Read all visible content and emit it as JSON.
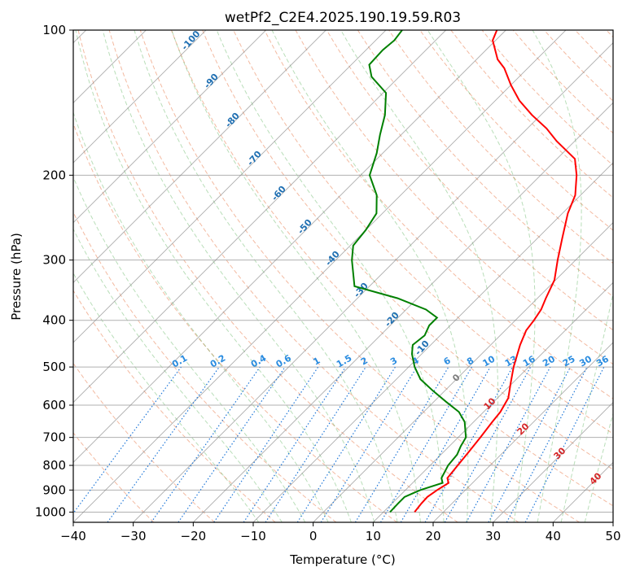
{
  "chart_data": {
    "type": "line",
    "title": "wetPf2_C2E4.2025.190.19.59.R03",
    "xlabel": "Temperature (°C)",
    "ylabel": "Pressure (hPa)",
    "xlim": [
      -40,
      50
    ],
    "ylim": [
      1050,
      100
    ],
    "yscale": "log",
    "x_ticks": [
      -40,
      -30,
      -20,
      -10,
      0,
      10,
      20,
      30,
      40,
      50
    ],
    "y_ticks": [
      100,
      200,
      300,
      400,
      500,
      600,
      700,
      800,
      900,
      1000
    ],
    "grid": true,
    "skew_t": true,
    "series": [
      {
        "role": "temperature",
        "color": "#ff0000",
        "points": [
          [
            1000,
            15.2
          ],
          [
            960,
            14.9
          ],
          [
            930,
            14.8
          ],
          [
            900,
            15.3
          ],
          [
            870,
            16.0
          ],
          [
            850,
            15.0
          ],
          [
            800,
            14.6
          ],
          [
            750,
            14.2
          ],
          [
            700,
            13.7
          ],
          [
            650,
            13.1
          ],
          [
            620,
            12.8
          ],
          [
            580,
            11.8
          ],
          [
            540,
            9.7
          ],
          [
            500,
            7.5
          ],
          [
            450,
            4.9
          ],
          [
            420,
            3.5
          ],
          [
            400,
            3.1
          ],
          [
            380,
            2.5
          ],
          [
            360,
            1.4
          ],
          [
            330,
            -0.2
          ],
          [
            300,
            -3.0
          ],
          [
            270,
            -5.9
          ],
          [
            240,
            -9.1
          ],
          [
            220,
            -10.9
          ],
          [
            200,
            -14.0
          ],
          [
            185,
            -17.0
          ],
          [
            170,
            -23.0
          ],
          [
            160,
            -26.8
          ],
          [
            150,
            -31.5
          ],
          [
            140,
            -36.0
          ],
          [
            130,
            -40.0
          ],
          [
            120,
            -43.9
          ],
          [
            115,
            -46.5
          ],
          [
            105,
            -50.5
          ],
          [
            100,
            -51.5
          ]
        ]
      },
      {
        "role": "dewpoint",
        "color": "#008000",
        "points": [
          [
            1000,
            11.1
          ],
          [
            960,
            11.0
          ],
          [
            930,
            11.0
          ],
          [
            900,
            12.5
          ],
          [
            870,
            15.0
          ],
          [
            850,
            14.0
          ],
          [
            800,
            13.0
          ],
          [
            760,
            12.7
          ],
          [
            730,
            11.9
          ],
          [
            700,
            11.3
          ],
          [
            650,
            8.5
          ],
          [
            620,
            5.9
          ],
          [
            590,
            2.0
          ],
          [
            560,
            -2.0
          ],
          [
            530,
            -6.0
          ],
          [
            500,
            -9.0
          ],
          [
            470,
            -11.6
          ],
          [
            450,
            -13.0
          ],
          [
            430,
            -12.6
          ],
          [
            410,
            -13.5
          ],
          [
            395,
            -13.5
          ],
          [
            380,
            -16.7
          ],
          [
            360,
            -23.3
          ],
          [
            340,
            -32.5
          ],
          [
            300,
            -37.3
          ],
          [
            280,
            -39.5
          ],
          [
            260,
            -40.0
          ],
          [
            240,
            -41.0
          ],
          [
            220,
            -44.0
          ],
          [
            200,
            -48.5
          ],
          [
            180,
            -51.0
          ],
          [
            165,
            -53.5
          ],
          [
            150,
            -56.0
          ],
          [
            135,
            -59.5
          ],
          [
            125,
            -64.6
          ],
          [
            118,
            -67.0
          ],
          [
            110,
            -67.2
          ],
          [
            105,
            -66.9
          ],
          [
            100,
            -67.3
          ]
        ]
      }
    ],
    "dry_adiabat_labels": [
      -100,
      -90,
      -80,
      -70,
      -60,
      -50,
      -40,
      -30,
      -20,
      -10
    ],
    "mixing_ratio_labels": [
      "0.1",
      "0.2",
      "0.4",
      "0.6",
      "1",
      "1.5",
      "2",
      "3",
      "4",
      "6",
      "8",
      "10",
      "13",
      "16",
      "20",
      "25",
      "30",
      "36"
    ],
    "moist_adiabat_labels": [
      "0",
      "10",
      "20",
      "30",
      "40"
    ],
    "colors": {
      "temperature": "#ff0000",
      "dewpoint": "#008000",
      "dry_adiabat": "#e35b1e",
      "moist_adiabat": "#2a9a2a",
      "mixing_ratio": "#1f77d8",
      "isotherm": "#808080",
      "isobar": "#b0b0b0",
      "dry_label": "#1f6fb2",
      "mixing_label": "#2a8ce0",
      "moist_label": "#d62728",
      "zero_label": "#7f7f7f"
    }
  }
}
